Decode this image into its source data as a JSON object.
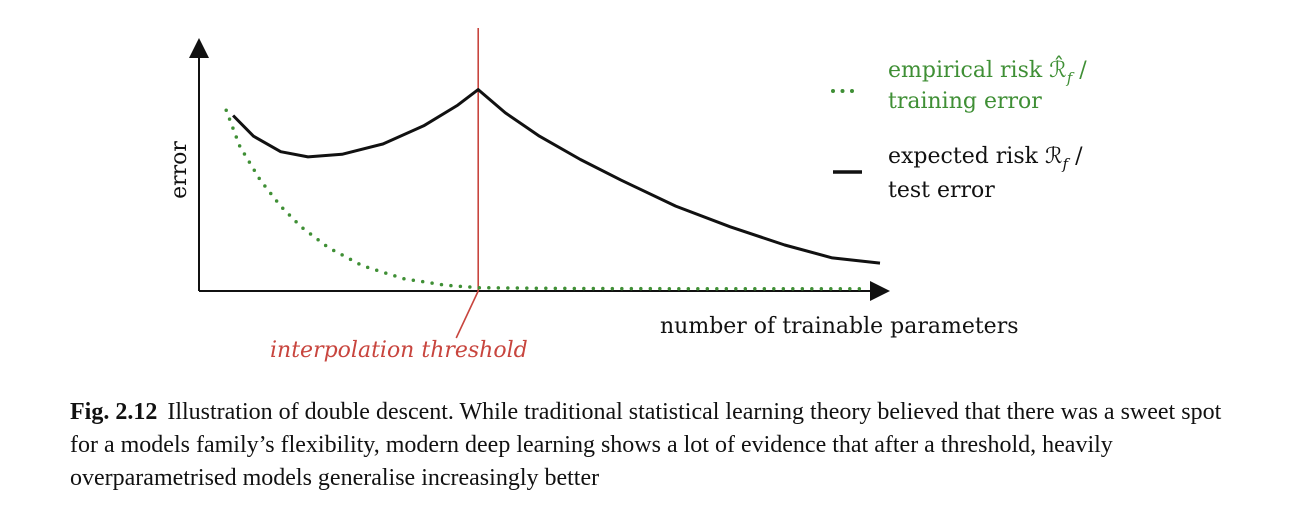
{
  "chart_data": {
    "type": "line",
    "xlabel": "number of trainable parameters",
    "ylabel": "error",
    "threshold_label": "interpolation threshold",
    "threshold_x": 0.41,
    "xlim": [
      0,
      1
    ],
    "ylim": [
      0,
      1
    ],
    "grid": false,
    "legend_position": "top-right",
    "series": [
      {
        "name": "empirical risk R̂_f / training error",
        "legend_line1": "empirical risk ℛ̂",
        "legend_sub": "f",
        "legend_line2": "training error",
        "style": "dotted",
        "color": "#3f8f35",
        "points": [
          [
            0.04,
            0.69
          ],
          [
            0.06,
            0.55
          ],
          [
            0.09,
            0.42
          ],
          [
            0.12,
            0.32
          ],
          [
            0.15,
            0.24
          ],
          [
            0.19,
            0.16
          ],
          [
            0.24,
            0.09
          ],
          [
            0.3,
            0.04
          ],
          [
            0.36,
            0.015
          ],
          [
            0.41,
            0.005
          ],
          [
            0.55,
            0.002
          ],
          [
            0.7,
            0.001
          ],
          [
            0.85,
            0.001
          ],
          [
            0.98,
            0.001
          ]
        ]
      },
      {
        "name": "expected risk R_f / test error",
        "legend_line1": "expected risk ℛ",
        "legend_sub": "f",
        "legend_line2": "test error",
        "style": "solid",
        "color": "#111111",
        "points": [
          [
            0.05,
            0.67
          ],
          [
            0.08,
            0.59
          ],
          [
            0.12,
            0.53
          ],
          [
            0.16,
            0.51
          ],
          [
            0.21,
            0.52
          ],
          [
            0.27,
            0.56
          ],
          [
            0.33,
            0.63
          ],
          [
            0.38,
            0.71
          ],
          [
            0.41,
            0.77
          ],
          [
            0.45,
            0.68
          ],
          [
            0.5,
            0.59
          ],
          [
            0.56,
            0.5
          ],
          [
            0.62,
            0.42
          ],
          [
            0.7,
            0.32
          ],
          [
            0.78,
            0.24
          ],
          [
            0.86,
            0.17
          ],
          [
            0.93,
            0.12
          ],
          [
            1.0,
            0.1
          ]
        ]
      }
    ]
  },
  "caption": {
    "label": "Fig. 2.12",
    "text": "Illustration of double descent. While traditional statistical learning theory believed that there was a sweet spot for a models family’s flexibility, modern deep learning shows a lot of evidence that after a threshold, heavily overparametrised models generalise increasingly better"
  }
}
